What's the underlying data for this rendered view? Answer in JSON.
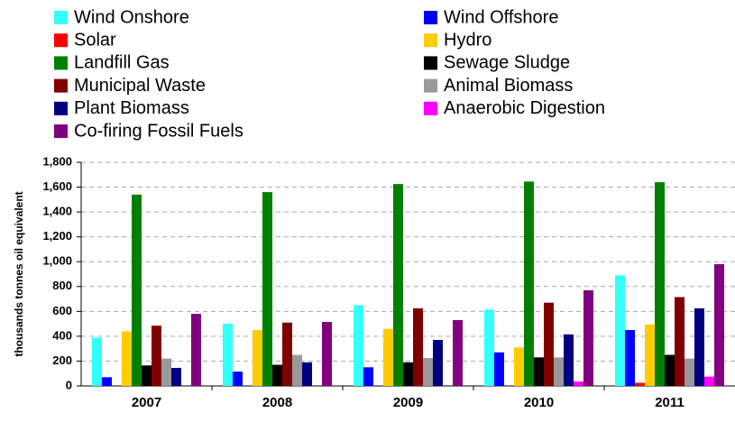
{
  "chart_data": {
    "type": "bar",
    "y_label": "thousands tonnes oil equivalent",
    "categories": [
      "2007",
      "2008",
      "2009",
      "2010",
      "2011"
    ],
    "series": [
      {
        "name": "Wind Onshore",
        "color": "#33ffff",
        "values": [
          390,
          500,
          650,
          615,
          890
        ]
      },
      {
        "name": "Wind Offshore",
        "color": "#0000ff",
        "values": [
          70,
          115,
          150,
          270,
          450
        ]
      },
      {
        "name": "Solar",
        "color": "#ff0000",
        "values": [
          0,
          0,
          0,
          0,
          25
        ]
      },
      {
        "name": "Hydro",
        "color": "#ffcc00",
        "values": [
          440,
          450,
          460,
          310,
          495
        ]
      },
      {
        "name": "Landfill Gas",
        "color": "#008000",
        "values": [
          1540,
          1560,
          1625,
          1645,
          1640
        ]
      },
      {
        "name": "Sewage Sludge",
        "color": "#000000",
        "values": [
          165,
          170,
          190,
          230,
          250
        ]
      },
      {
        "name": "Municipal Waste",
        "color": "#800000",
        "values": [
          485,
          510,
          625,
          670,
          715
        ]
      },
      {
        "name": "Animal Biomass",
        "color": "#999999",
        "values": [
          220,
          250,
          225,
          230,
          220
        ]
      },
      {
        "name": "Plant Biomass",
        "color": "#000080",
        "values": [
          145,
          190,
          370,
          415,
          625
        ]
      },
      {
        "name": "Anaerobic Digestion",
        "color": "#ff00ff",
        "values": [
          0,
          0,
          0,
          35,
          75
        ]
      },
      {
        "name": "Co-firing Fossil Fuels",
        "color": "#800080",
        "values": [
          580,
          515,
          530,
          770,
          980
        ]
      }
    ],
    "ylim": [
      0,
      1800
    ],
    "yticks": [
      0,
      200,
      400,
      600,
      800,
      {
        "value": 1000,
        "label": "1,000"
      },
      {
        "value": 1200,
        "label": "1,200"
      },
      {
        "value": 1400,
        "label": "1,400"
      },
      {
        "value": 1600,
        "label": "1,600"
      },
      {
        "value": 1800,
        "label": "1,800"
      }
    ],
    "grid": true
  }
}
